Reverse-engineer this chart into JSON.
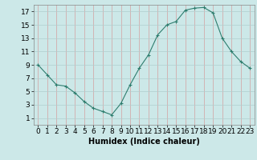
{
  "x": [
    0,
    1,
    2,
    3,
    4,
    5,
    6,
    7,
    8,
    9,
    10,
    11,
    12,
    13,
    14,
    15,
    16,
    17,
    18,
    19,
    20,
    21,
    22,
    23
  ],
  "y": [
    9,
    7.5,
    6,
    5.8,
    4.8,
    3.5,
    2.5,
    2.0,
    1.5,
    3.2,
    6.0,
    8.5,
    10.5,
    13.5,
    15.0,
    15.5,
    17.2,
    17.5,
    17.6,
    16.8,
    13.0,
    11.0,
    9.5,
    8.5
  ],
  "line_color": "#2e7d6e",
  "marker": "+",
  "bg_color": "#cce8e8",
  "grid_color": "#b0cece",
  "grid_color_red": "#d4a0a0",
  "xlabel": "Humidex (Indice chaleur)",
  "ylim": [
    0,
    18
  ],
  "xlim": [
    -0.5,
    23.5
  ],
  "yticks": [
    1,
    3,
    5,
    7,
    9,
    11,
    13,
    15,
    17
  ],
  "xticks": [
    0,
    1,
    2,
    3,
    4,
    5,
    6,
    7,
    8,
    9,
    10,
    11,
    12,
    13,
    14,
    15,
    16,
    17,
    18,
    19,
    20,
    21,
    22,
    23
  ],
  "xlabel_fontsize": 7,
  "tick_fontsize": 6.5
}
